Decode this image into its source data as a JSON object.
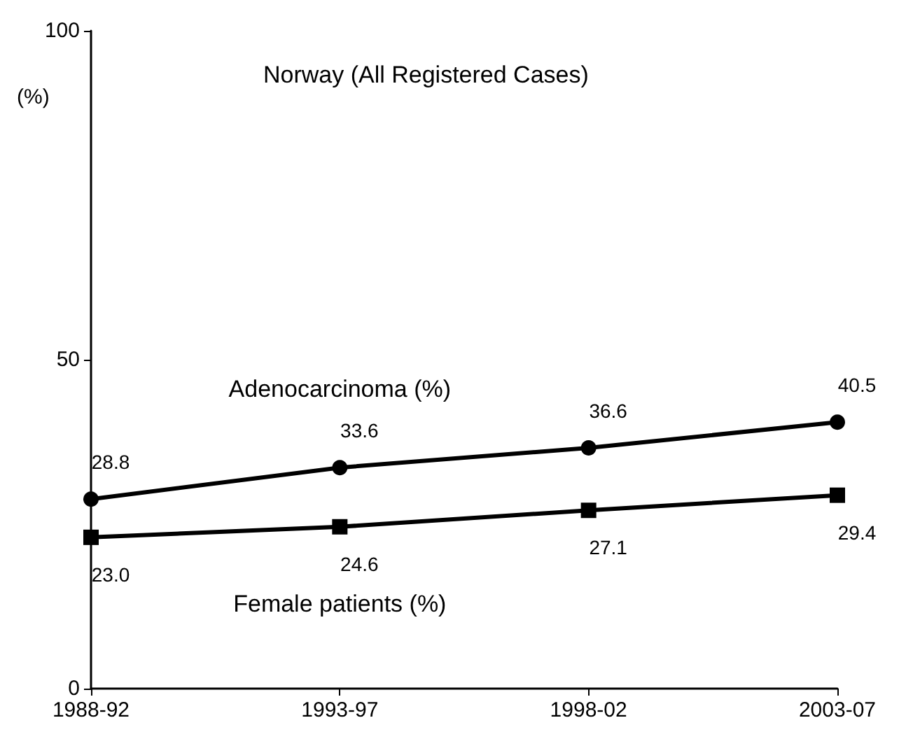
{
  "chart_data": {
    "type": "line",
    "title": "Norway (All Registered Cases)",
    "ylabel": "(%)",
    "categories": [
      "1988-92",
      "1993-97",
      "1998-02",
      "2003-07"
    ],
    "series": [
      {
        "name": "Adenocarcinoma (%)",
        "color": "#000000",
        "marker": "circle",
        "values": [
          28.8,
          33.6,
          36.6,
          40.5
        ],
        "value_labels": [
          "28.8",
          "33.6",
          "36.6",
          "40.5"
        ]
      },
      {
        "name": "Female patients (%)",
        "color": "#000000",
        "marker": "square",
        "values": [
          23.0,
          24.6,
          27.1,
          29.4
        ],
        "value_labels": [
          "23.0",
          "24.6",
          "27.1",
          "29.4"
        ]
      }
    ],
    "ylim": [
      0,
      100
    ],
    "yticks": [
      0,
      50,
      100
    ],
    "grid": false,
    "legend": false
  }
}
